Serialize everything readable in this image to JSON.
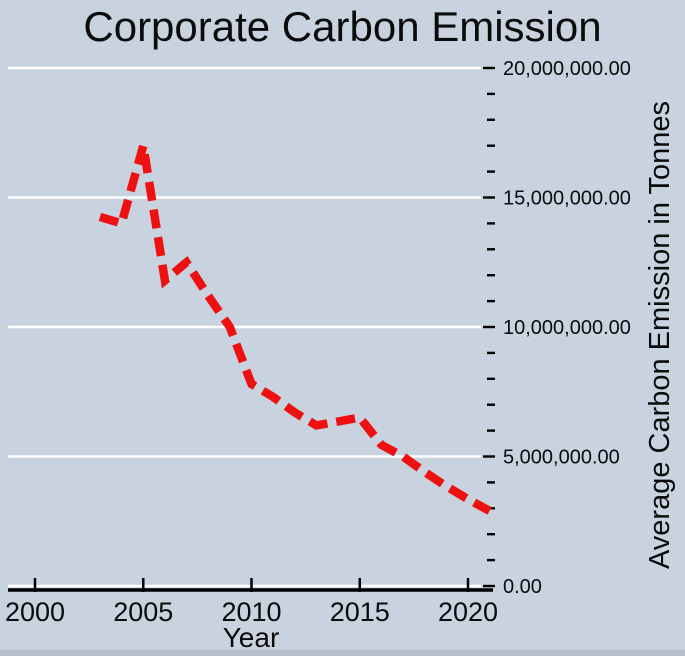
{
  "figure": {
    "background_color": "#c9d3df",
    "gridline_color": "#ffffff",
    "text_color": "#0b0b0b",
    "bottom_strip_color": "#b7c1cc"
  },
  "chart_data": {
    "type": "line",
    "title": "Corporate Carbon Emission",
    "xlabel": "Year",
    "ylabel": "Average Carbon Emission in Tonnes",
    "line_color": "#ee1111",
    "line_style": "dashed",
    "grid": "horizontal-white-major",
    "legend": "none",
    "x": [
      2003,
      2004,
      2005,
      2006,
      2007,
      2008,
      2009,
      2010,
      2011,
      2012,
      2013,
      2014,
      2015,
      2016,
      2017,
      2018,
      2019,
      2020,
      2021
    ],
    "values": [
      14250000,
      14000000,
      17000000,
      11800000,
      12500000,
      11200000,
      10000000,
      7800000,
      7300000,
      6700000,
      6200000,
      6350000,
      6500000,
      5450000,
      5000000,
      4400000,
      3850000,
      3350000,
      2900000
    ],
    "xlim": [
      1998.7,
      2021.2
    ],
    "ylim": [
      0,
      20000000
    ],
    "x_ticks": [
      2000,
      2005,
      2010,
      2015,
      2020
    ],
    "y_major_ticks": [
      0,
      5000000,
      10000000,
      15000000,
      20000000
    ],
    "y_tick_labels": [
      "0.00",
      "5,000,000.00",
      "10,000,000.00",
      "15,000,000.00",
      "20,000,000.00"
    ],
    "y_minor_step": 1000000
  }
}
